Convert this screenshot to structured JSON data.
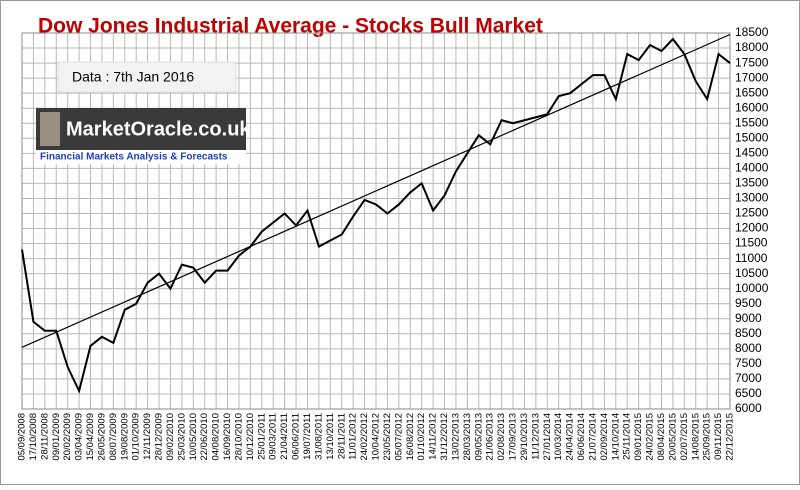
{
  "chart_data": {
    "type": "line",
    "title": "Dow Jones Industrial Average  - Stocks  Bull Market",
    "annotations": {
      "data_note": "Data : 7th Jan 2016",
      "logo": "MarketOracle.co.uk",
      "logo_tagline": "Financial Markets Analysis & Forecasts"
    },
    "categories": [
      "05/09/2008",
      "17/10/2008",
      "28/11/2008",
      "09/01/2009",
      "20/02/2009",
      "03/04/2009",
      "15/04/2009",
      "26/05/2009",
      "08/07/2009",
      "19/08/2009",
      "01/10/2009",
      "12/11/2009",
      "28/12/2009",
      "09/02/2010",
      "25/03/2010",
      "10/05/2010",
      "22/06/2010",
      "04/08/2010",
      "16/09/2010",
      "28/10/2010",
      "10/12/2010",
      "25/01/2011",
      "09/03/2011",
      "21/04/2011",
      "06/06/2011",
      "19/07/2011",
      "31/08/2011",
      "13/10/2011",
      "28/11/2011",
      "11/01/2012",
      "24/02/2012",
      "10/04/2012",
      "23/05/2012",
      "05/07/2012",
      "16/08/2012",
      "01/10/2012",
      "14/11/2012",
      "31/12/2012",
      "13/02/2013",
      "28/03/2013",
      "09/05/2013",
      "21/06/2013",
      "02/08/2013",
      "17/09/2013",
      "29/10/2013",
      "11/12/2013",
      "27/01/2014",
      "10/03/2014",
      "24/04/2014",
      "06/06/2014",
      "21/07/2014",
      "02/09/2014",
      "14/10/2014",
      "25/11/2014",
      "09/01/2015",
      "24/02/2015",
      "08/04/2015",
      "20/05/2015",
      "02/07/2015",
      "14/08/2015",
      "25/09/2015",
      "09/11/2015",
      "22/12/2015"
    ],
    "values": [
      11300,
      8900,
      8600,
      8600,
      7400,
      6600,
      8100,
      8400,
      8200,
      9300,
      9500,
      10200,
      10500,
      10000,
      10800,
      10700,
      10200,
      10600,
      10600,
      11100,
      11400,
      11900,
      12200,
      12500,
      12100,
      12600,
      11400,
      11600,
      11800,
      12400,
      12950,
      12800,
      12500,
      12800,
      13200,
      13500,
      12600,
      13100,
      13900,
      14500,
      15100,
      14800,
      15600,
      15500,
      15600,
      15700,
      15800,
      16400,
      16500,
      16800,
      17100,
      17100,
      16300,
      17800,
      17600,
      18100,
      17900,
      18300,
      17800,
      16900,
      16300,
      17800,
      17500
    ],
    "color": "#000000",
    "trendline": {
      "values": [
        8050,
        18450
      ],
      "color": "#000000"
    },
    "ylim": [
      6000,
      18500
    ],
    "yticks": [
      6000,
      6500,
      7000,
      7500,
      8000,
      8500,
      9000,
      9500,
      10000,
      10500,
      11000,
      11500,
      12000,
      12500,
      13000,
      13500,
      14000,
      14500,
      15000,
      15500,
      16000,
      16500,
      17000,
      17500,
      18000,
      18500
    ],
    "grid": true
  }
}
